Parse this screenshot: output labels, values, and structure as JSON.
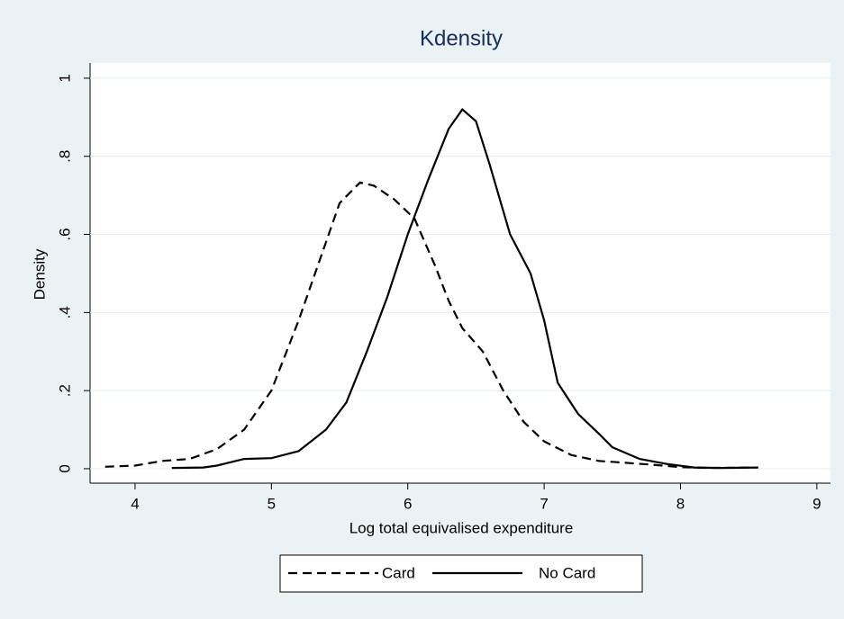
{
  "chart_data": {
    "type": "line",
    "title": "Kdensity",
    "x_label": "Log total equivalised expenditure",
    "y_label": "Density",
    "xlim": [
      3.67,
      9.1
    ],
    "ylim": [
      -0.037,
      1.039
    ],
    "xticks": [
      4,
      5,
      6,
      7,
      8,
      9
    ],
    "yticks": [
      0,
      {
        "value": 0.2,
        "label": ".2"
      },
      {
        "value": 0.4,
        "label": ".4"
      },
      {
        "value": 0.6,
        "label": ".6"
      },
      {
        "value": 0.8,
        "label": ".8"
      },
      1
    ],
    "grid": true,
    "legend": "bottom",
    "series": [
      {
        "name": "Card",
        "color": "#000000",
        "dash": "dashed",
        "x": [
          3.78,
          4.0,
          4.2,
          4.4,
          4.6,
          4.8,
          5.0,
          5.2,
          5.4,
          5.5,
          5.65,
          5.75,
          5.9,
          6.05,
          6.2,
          6.3,
          6.4,
          6.55,
          6.7,
          6.85,
          7.0,
          7.2,
          7.4,
          7.6,
          7.8,
          8.0,
          8.2,
          8.55
        ],
        "values": [
          0.005,
          0.008,
          0.02,
          0.025,
          0.05,
          0.1,
          0.2,
          0.38,
          0.58,
          0.68,
          0.733,
          0.725,
          0.69,
          0.64,
          0.52,
          0.43,
          0.36,
          0.3,
          0.2,
          0.12,
          0.07,
          0.035,
          0.02,
          0.015,
          0.01,
          0.004,
          0.002,
          0.003
        ]
      },
      {
        "name": "No Card",
        "color": "#000000",
        "dash": "solid",
        "x": [
          4.27,
          4.5,
          4.6,
          4.8,
          5.0,
          5.2,
          5.4,
          5.55,
          5.7,
          5.85,
          6.0,
          6.15,
          6.3,
          6.4,
          6.5,
          6.6,
          6.75,
          6.9,
          7.0,
          7.1,
          7.25,
          7.4,
          7.5,
          7.7,
          7.9,
          8.1,
          8.3,
          8.57
        ],
        "values": [
          0.002,
          0.003,
          0.008,
          0.025,
          0.027,
          0.045,
          0.1,
          0.17,
          0.3,
          0.44,
          0.6,
          0.74,
          0.87,
          0.92,
          0.89,
          0.78,
          0.6,
          0.5,
          0.38,
          0.22,
          0.14,
          0.09,
          0.055,
          0.025,
          0.012,
          0.003,
          0.002,
          0.003
        ]
      }
    ]
  }
}
